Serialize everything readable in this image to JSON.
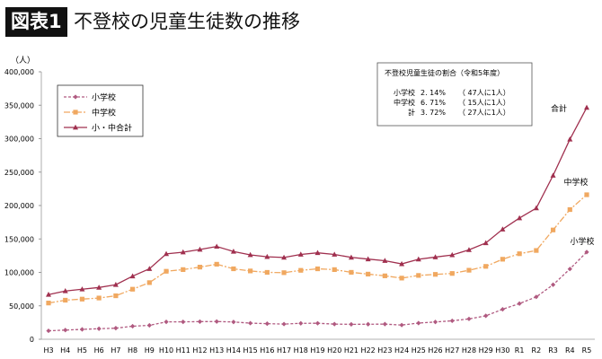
{
  "header": {
    "badge": "図表1",
    "title": "不登校の児童生徒数の推移"
  },
  "info_box": {
    "heading": "不登校児童生徒の割合（令和5年度）",
    "rows": [
      {
        "label": "小学校",
        "pct": "2. 14%",
        "ratio": "（  47人に1人）"
      },
      {
        "label": "中学校",
        "pct": "6. 71%",
        "ratio": "（  15人に1人）"
      },
      {
        "label": "計",
        "pct": "3. 72%",
        "ratio": "（  27人に1人）"
      }
    ]
  },
  "chart_data": {
    "type": "line",
    "ylabel": "（人）",
    "ylim": [
      0,
      400000
    ],
    "yticks": [
      0,
      50000,
      100000,
      150000,
      200000,
      250000,
      300000,
      350000,
      400000
    ],
    "ytick_labels": [
      "0",
      "50,000",
      "100,000",
      "150,000",
      "200,000",
      "250,000",
      "300,000",
      "350,000",
      "400,000"
    ],
    "legend_position": "top-left",
    "x": [
      "H3",
      "H4",
      "H5",
      "H6",
      "H7",
      "H8",
      "H9",
      "H10",
      "H11",
      "H12",
      "H13",
      "H14",
      "H15",
      "H16",
      "H17",
      "H18",
      "H19",
      "H20",
      "H21",
      "H22",
      "H23",
      "H24",
      "H25",
      "H26",
      "H27",
      "H28",
      "H29",
      "H30",
      "R1",
      "R2",
      "R3",
      "R4",
      "R5"
    ],
    "series": [
      {
        "name": "小学校",
        "end_label": "小学校",
        "color": "#b05a80",
        "dash": "3,2",
        "marker": "diamond",
        "values": [
          12645,
          13710,
          14769,
          15786,
          16569,
          19498,
          20765,
          26017,
          26047,
          26373,
          26511,
          25869,
          24077,
          23318,
          22709,
          23825,
          23927,
          22652,
          22327,
          22463,
          22622,
          21243,
          24175,
          25864,
          27583,
          30448,
          35032,
          44841,
          53350,
          63350,
          81498,
          105112,
          130370
        ]
      },
      {
        "name": "中学校",
        "end_label": "中学校",
        "color": "#f0a860",
        "dash": "7,2,2,2",
        "marker": "square",
        "values": [
          54172,
          58421,
          60039,
          61663,
          65022,
          74853,
          84701,
          101675,
          104180,
          107913,
          112211,
          105383,
          102149,
          100040,
          99578,
          103069,
          105328,
          104153,
          100105,
          97428,
          94836,
          91446,
          95442,
          97033,
          98408,
          103235,
          108999,
          119687,
          127922,
          132777,
          163442,
          193936,
          216112
        ]
      },
      {
        "name": "小・中合計",
        "end_label": "合計",
        "color": "#a0304f",
        "dash": "",
        "marker": "triangle",
        "values": [
          66817,
          72131,
          74808,
          77449,
          81591,
          94351,
          105466,
          127692,
          130227,
          134286,
          138722,
          131252,
          126226,
          123358,
          122287,
          126894,
          129255,
          126805,
          122432,
          119891,
          117458,
          112689,
          119617,
          122897,
          125991,
          133683,
          144031,
          164528,
          181272,
          196127,
          244940,
          299048,
          346482
        ]
      }
    ]
  }
}
